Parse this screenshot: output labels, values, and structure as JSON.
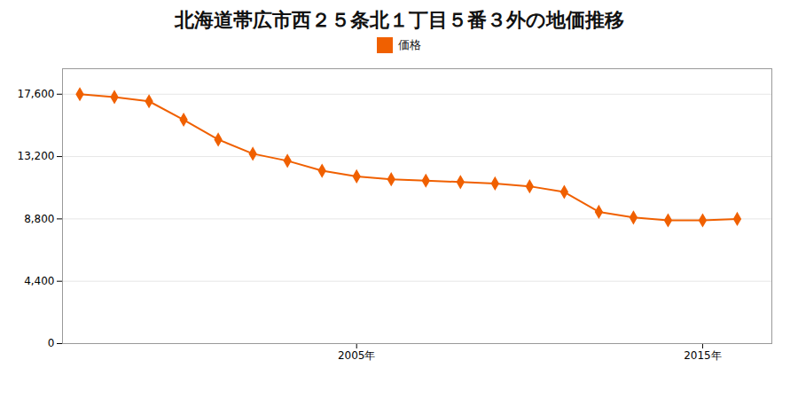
{
  "chart_data": {
    "type": "line",
    "title": "北海道帯広市西２５条北１丁目５番３外の地価推移",
    "x": [
      1997,
      1998,
      1999,
      2000,
      2001,
      2002,
      2003,
      2004,
      2005,
      2006,
      2007,
      2008,
      2009,
      2010,
      2011,
      2012,
      2013,
      2014,
      2015,
      2016
    ],
    "series": [
      {
        "name": "価格",
        "color": "#f06000",
        "marker": "diamond",
        "values": [
          17600,
          17400,
          17100,
          15800,
          14400,
          13400,
          12900,
          12200,
          11800,
          11600,
          11500,
          11400,
          11300,
          11100,
          10700,
          9300,
          8900,
          8700,
          8700,
          8800
        ]
      }
    ],
    "xlim": [
      1996.5,
      2017.0
    ],
    "xticks": [
      {
        "value": 2005,
        "label": "2005年"
      },
      {
        "value": 2015,
        "label": "2015年"
      }
    ],
    "ylim": [
      0,
      19400
    ],
    "yticks": [
      0,
      {
        "value": 4400,
        "label": "4,400"
      },
      {
        "value": 8800,
        "label": "8,800"
      },
      {
        "value": 13200,
        "label": "13,200"
      },
      {
        "value": 17600,
        "label": "17,600"
      }
    ],
    "grid": "y",
    "legend": "top"
  }
}
